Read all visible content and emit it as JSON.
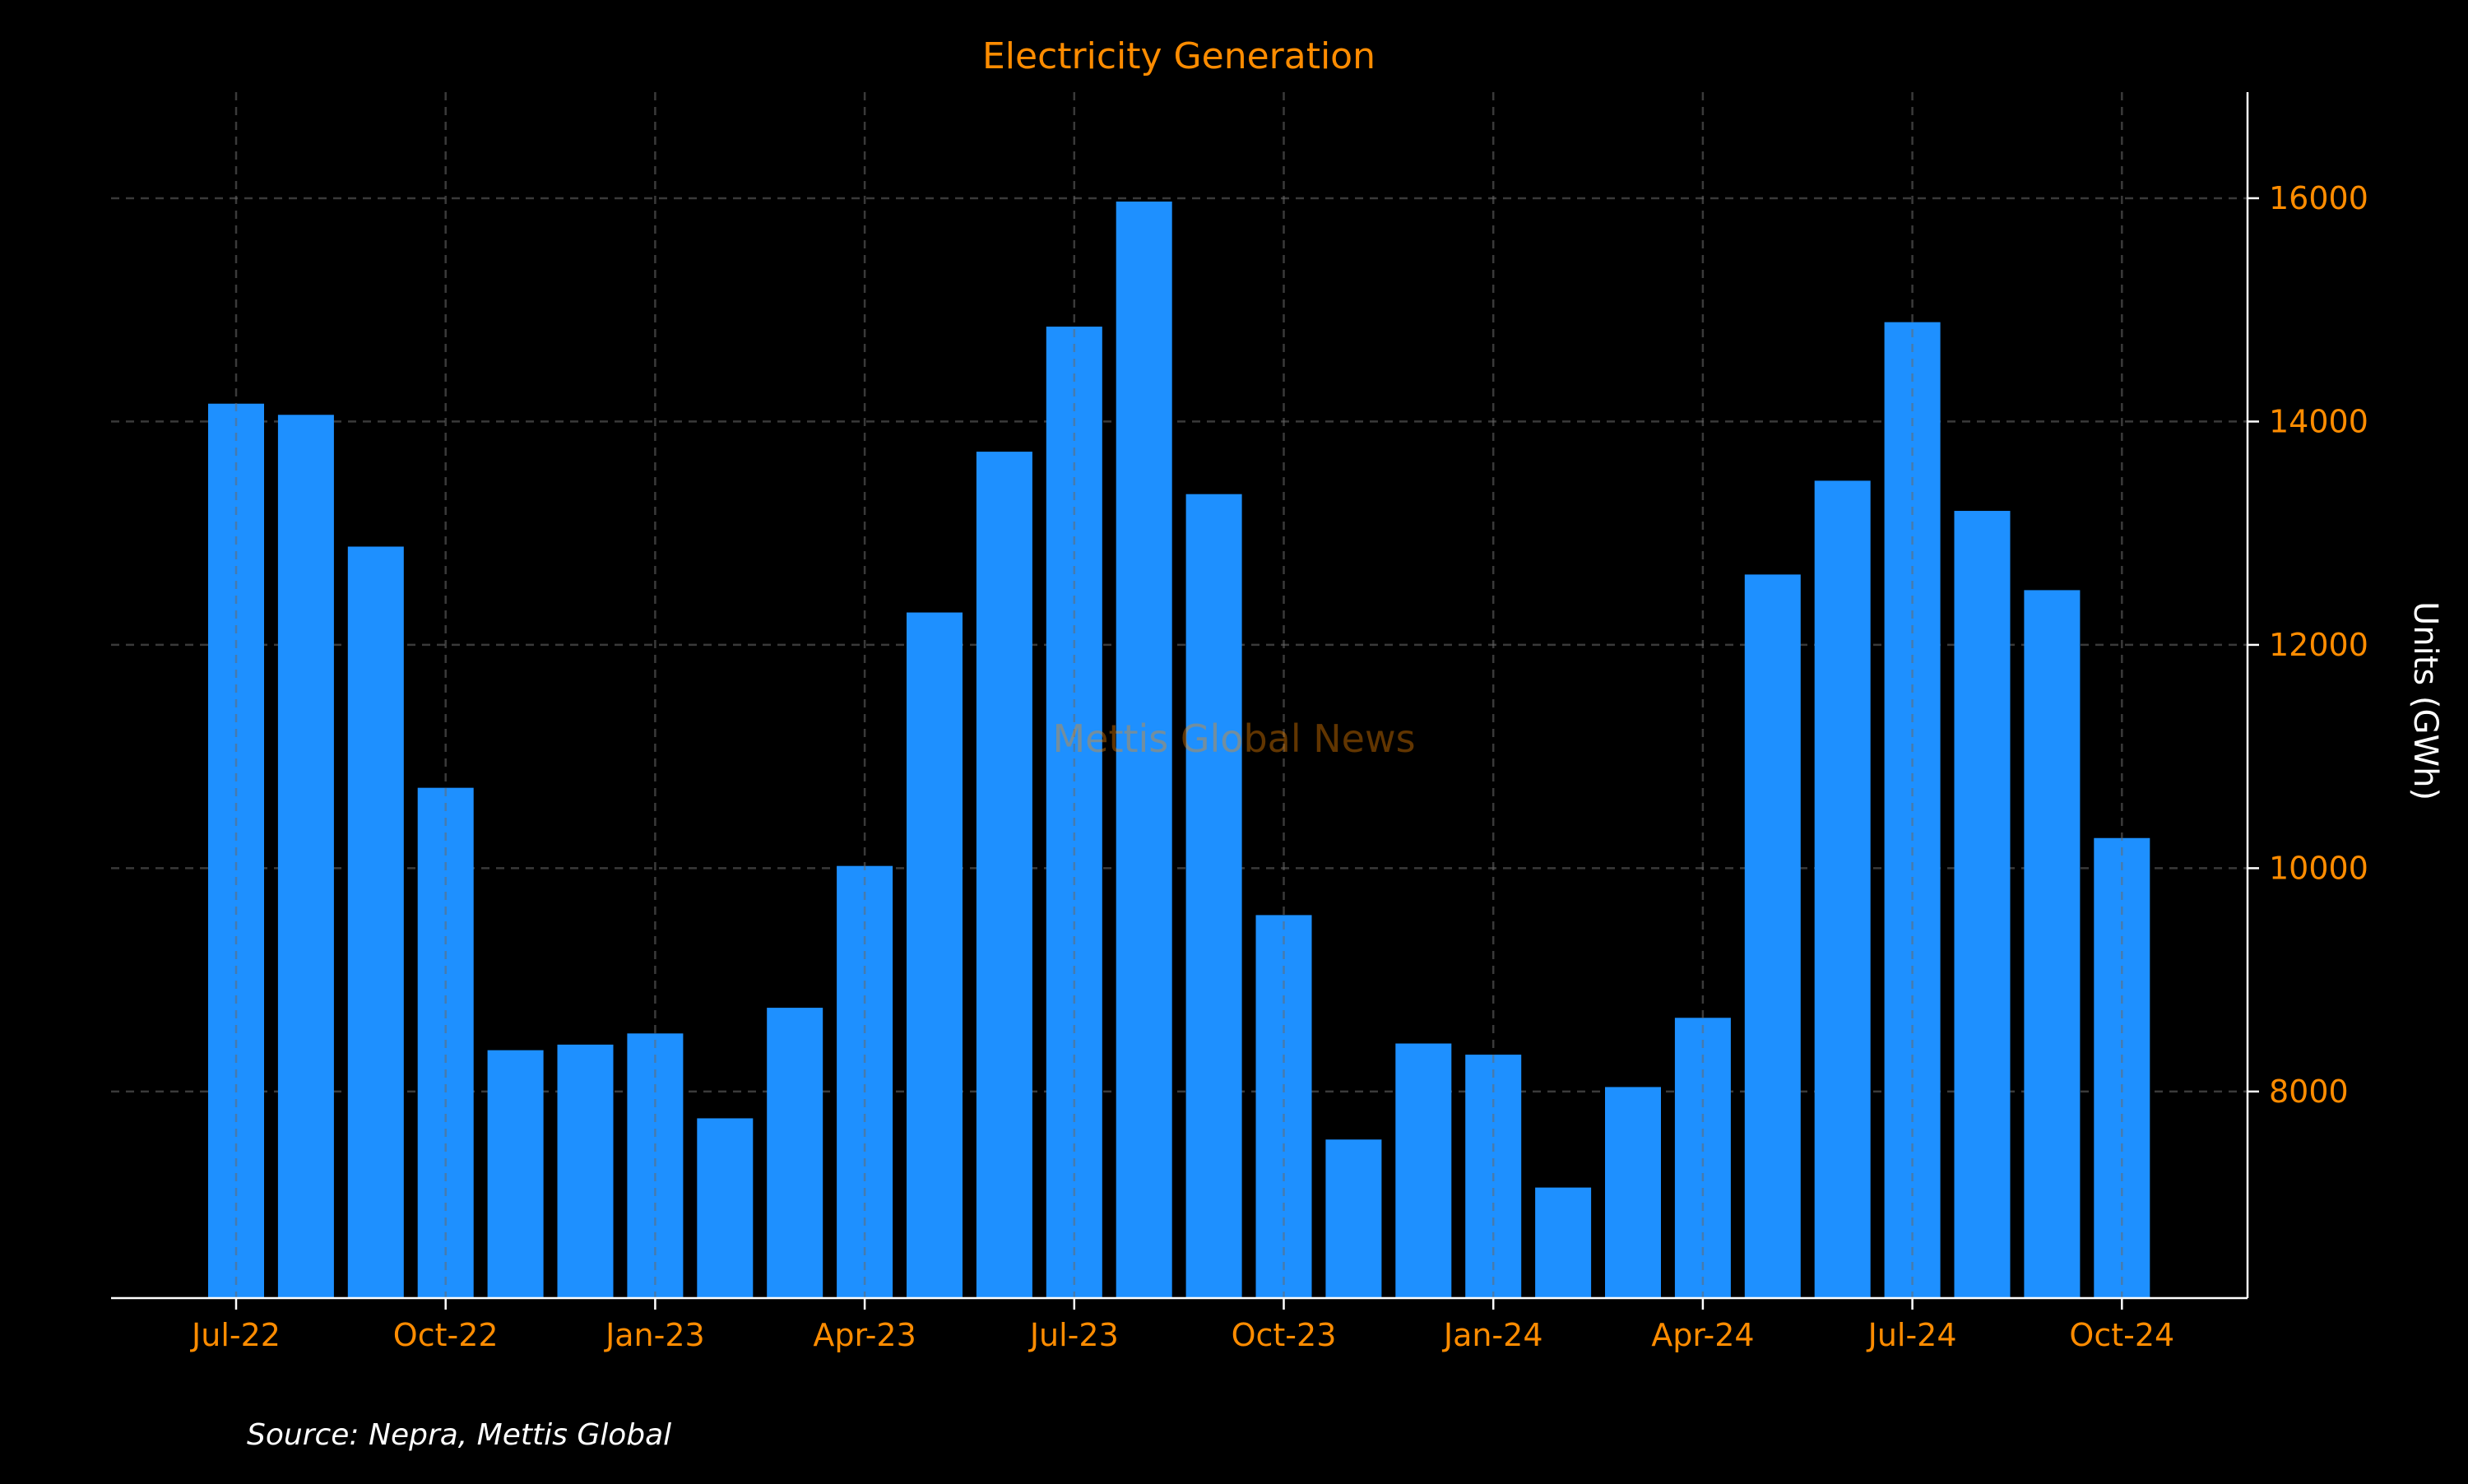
{
  "colors": {
    "background": "#000000",
    "bar": "#1E90FF",
    "accent": "#FF8C00",
    "axis": "#FFFFFF",
    "grid": "#6A6A6A"
  },
  "watermark": "Mettis Global News",
  "source": "Source: Nepra, Mettis Global",
  "chart_data": {
    "type": "bar",
    "title": "Electricity Generation",
    "xlabel": "",
    "ylabel": "Units (GWh)",
    "ylim": [
      6150,
      16950
    ],
    "yaxis_position": "right",
    "yticks": [
      8000,
      10000,
      12000,
      14000,
      16000
    ],
    "grid": true,
    "categories": [
      "Jul-22",
      "Aug-22",
      "Sep-22",
      "Oct-22",
      "Nov-22",
      "Dec-22",
      "Jan-23",
      "Feb-23",
      "Mar-23",
      "Apr-23",
      "May-23",
      "Jun-23",
      "Jul-23",
      "Aug-23",
      "Sep-23",
      "Oct-23",
      "Nov-23",
      "Dec-23",
      "Jan-24",
      "Feb-24",
      "Mar-24",
      "Apr-24",
      "May-24",
      "Jun-24",
      "Jul-24",
      "Aug-24",
      "Sep-24",
      "Oct-24"
    ],
    "values": [
      14160,
      14060,
      12880,
      10720,
      8370,
      8420,
      8520,
      7760,
      8750,
      10020,
      12290,
      13730,
      14850,
      15970,
      13350,
      9580,
      7570,
      8430,
      8330,
      7140,
      8040,
      8660,
      12630,
      13470,
      14890,
      13200,
      12490,
      10270
    ],
    "xtick_labels": [
      "Jul-22",
      "Oct-22",
      "Jan-23",
      "Apr-23",
      "Jul-23",
      "Oct-23",
      "Jan-24",
      "Apr-24",
      "Jul-24",
      "Oct-24"
    ],
    "xtick_category_index": [
      0,
      3,
      6,
      9,
      12,
      15,
      18,
      21,
      24,
      27
    ]
  }
}
